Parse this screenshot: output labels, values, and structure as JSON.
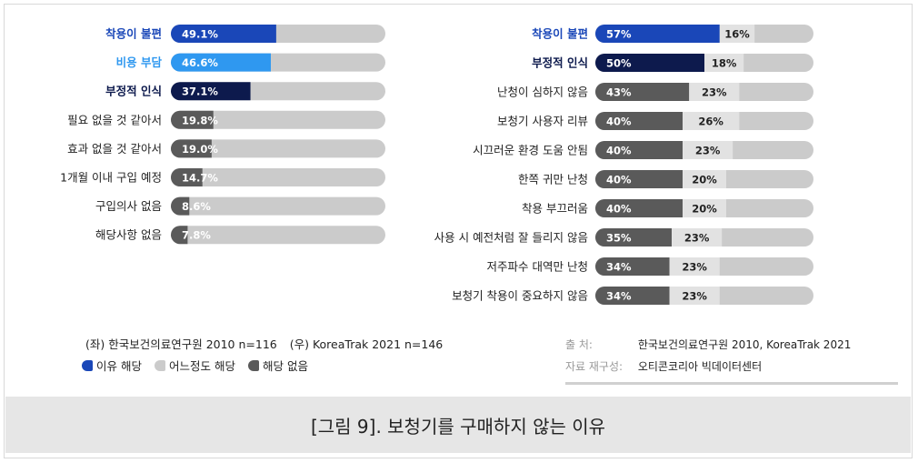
{
  "colors": {
    "reason": "#1a47b8",
    "reason_light": "#2f98f0",
    "reason_dark": "#0d1a4d",
    "neutral": "#cbcbcb",
    "not_applicable": "#5a5a5a",
    "track": "#cbcbcb"
  },
  "chart_data": [
    {
      "type": "bar",
      "orientation": "horizontal",
      "categories": [
        "착용이 불편",
        "비용 부담",
        "부정적 인식",
        "필요 없을 것 같아서",
        "효과 없을 것 같아서",
        "1개월 이내 구입 예정",
        "구입의사 없음",
        "해당사항 없음"
      ],
      "series": [
        {
          "name": "이유 해당",
          "values": [
            49.1,
            46.6,
            37.1,
            19.8,
            19.0,
            14.7,
            8.6,
            7.8
          ],
          "labels": [
            "49.1%",
            "46.6%",
            "37.1%",
            "19.8%",
            "19.0%",
            "14.7%",
            "8.6%",
            "7.8%"
          ]
        }
      ],
      "xlim": [
        0,
        100
      ]
    },
    {
      "type": "bar",
      "orientation": "horizontal",
      "stacked": true,
      "categories": [
        "착용이 불편",
        "부정적 인식",
        "난청이 심하지 않음",
        "보청기 사용자 리뷰",
        "시끄러운 환경 도움 안됨",
        "한쪽 귀만 난청",
        "착용 부끄러움",
        "사용 시 예전처럼 잘 들리지 않음",
        "저주파수 대역만 난청",
        "보청기 착용이 중요하지 않음"
      ],
      "series": [
        {
          "name": "해당 없음",
          "values": [
            57,
            50,
            43,
            40,
            40,
            40,
            40,
            35,
            34,
            34
          ],
          "labels": [
            "57%",
            "50%",
            "43%",
            "40%",
            "40%",
            "40%",
            "40%",
            "35%",
            "34%",
            "34%"
          ]
        },
        {
          "name": "어느정도 해당",
          "values": [
            16,
            18,
            23,
            26,
            23,
            20,
            20,
            23,
            23,
            23
          ],
          "labels": [
            "16%",
            "18%",
            "23%",
            "26%",
            "23%",
            "20%",
            "20%",
            "23%",
            "23%",
            "23%"
          ]
        }
      ],
      "xlim": [
        0,
        100
      ]
    }
  ],
  "note": {
    "left": "(좌) 한국보건의료연구원 2010 n=116",
    "right": "(우) KoreaTrak 2021 n=146"
  },
  "legend": [
    {
      "label": "이유 해당",
      "color": "#1a47b8"
    },
    {
      "label": "어느정도 해당",
      "color": "#cbcbcb"
    },
    {
      "label": "해당 없음",
      "color": "#5a5a5a"
    }
  ],
  "source": {
    "label1": "출        처:",
    "value1": "한국보건의료연구원 2010, KoreaTrak 2021",
    "label2": "자료 재구성:",
    "value2": "오티콘코리아 빅데이터센터"
  },
  "caption": "[그림 9]. 보청기를 구매하지 않는 이유"
}
